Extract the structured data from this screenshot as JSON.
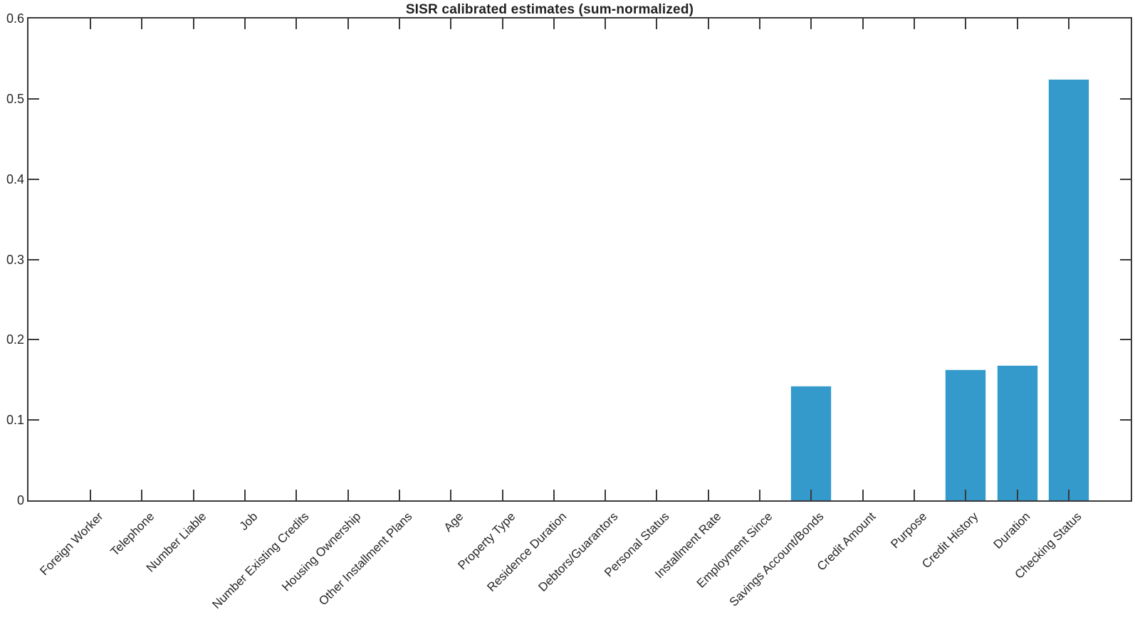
{
  "chart_data": {
    "type": "bar",
    "title": "SISR calibrated estimates (sum-normalized)",
    "categories": [
      "Foreign Worker",
      "Telephone",
      "Number Liable",
      "Job",
      "Number Existing Credits",
      "Housing Ownership",
      "Other Installment Plans",
      "Age",
      "Property Type",
      "Residence Duration",
      "Debtors/Guarantors",
      "Personal Status",
      "Installment Rate",
      "Employment Since",
      "Savings Account/Bonds",
      "Credit Amount",
      "Purpose",
      "Credit History",
      "Duration",
      "Checking Status"
    ],
    "values": [
      0,
      0,
      0,
      0,
      0,
      0,
      0,
      0,
      0,
      0,
      0,
      0,
      0,
      0,
      0.143,
      0,
      0,
      0.163,
      0.168,
      0.525
    ],
    "xlabel": "",
    "ylabel": "",
    "ylim": [
      0,
      0.6
    ],
    "yticks": [
      0,
      0.1,
      0.2,
      0.3,
      0.4,
      0.5,
      0.6
    ],
    "ytick_labels": [
      "0",
      "0.1",
      "0.2",
      "0.3",
      "0.4",
      "0.5",
      "0.6"
    ],
    "x_label_rotation_deg": -45,
    "grid": false,
    "legend": null,
    "bar_color": "#3499cb",
    "bar_edge_color": "#ddeef8",
    "axis_color": "#3a3a3a",
    "text_color": "#262626"
  }
}
